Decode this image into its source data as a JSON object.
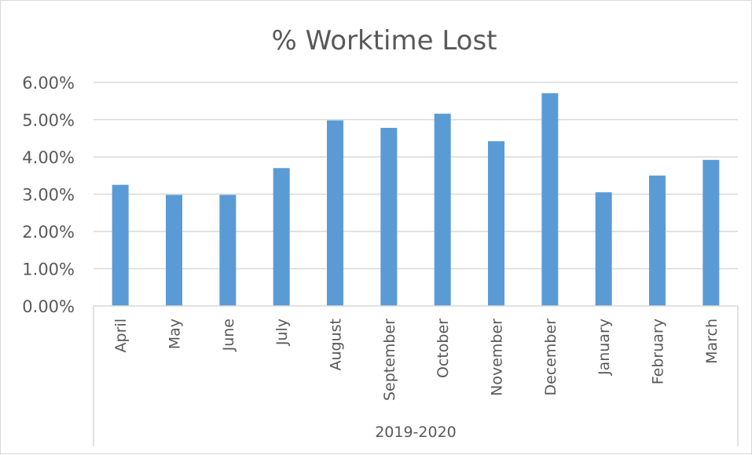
{
  "chart_data": {
    "type": "bar",
    "title": "% Worktime Lost",
    "categories": [
      "April",
      "May",
      "June",
      "July",
      "August",
      "September",
      "October",
      "November",
      "December",
      "January",
      "February",
      "March"
    ],
    "group_label": "2019-2020",
    "series": [
      {
        "values": [
          3.25,
          2.98,
          2.98,
          3.7,
          4.98,
          4.78,
          5.16,
          4.42,
          5.71,
          3.05,
          3.5,
          3.92
        ]
      }
    ],
    "y_ticks": [
      "0.00%",
      "1.00%",
      "2.00%",
      "3.00%",
      "4.00%",
      "5.00%",
      "6.00%"
    ],
    "ylim": [
      0,
      6
    ],
    "grid": true,
    "legend": "none",
    "bar_color": "#5b9bd5",
    "grid_color": "#d9d9d9"
  }
}
